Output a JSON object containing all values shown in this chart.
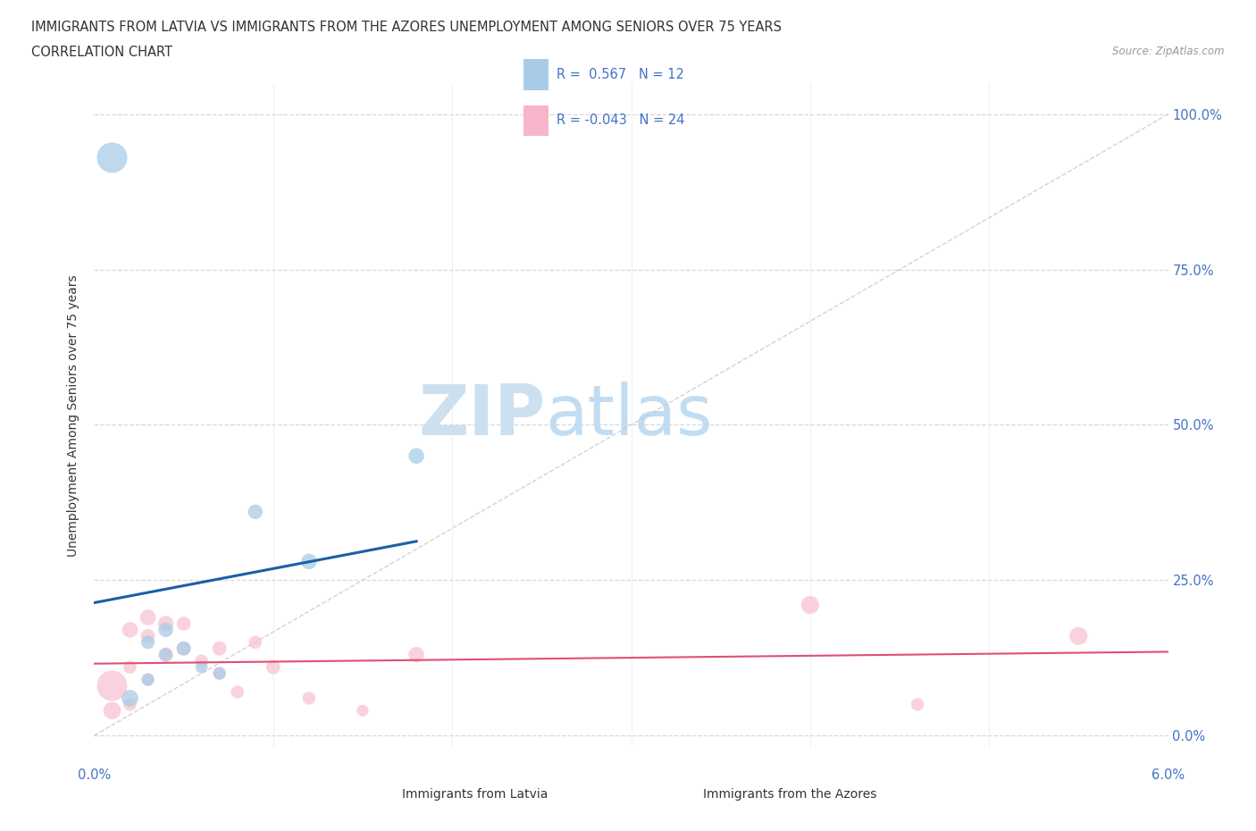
{
  "title_line1": "IMMIGRANTS FROM LATVIA VS IMMIGRANTS FROM THE AZORES UNEMPLOYMENT AMONG SENIORS OVER 75 YEARS",
  "title_line2": "CORRELATION CHART",
  "source": "Source: ZipAtlas.com",
  "ylabel": "Unemployment Among Seniors over 75 years",
  "ytick_labels": [
    "0.0%",
    "25.0%",
    "50.0%",
    "75.0%",
    "100.0%"
  ],
  "ytick_values": [
    0.0,
    0.25,
    0.5,
    0.75,
    1.0
  ],
  "xlim": [
    0.0,
    0.06
  ],
  "ylim": [
    -0.02,
    1.05
  ],
  "legend_label1": "Immigrants from Latvia",
  "legend_label2": "Immigrants from the Azores",
  "r_latvia": "0.567",
  "n_latvia": "12",
  "r_azores": "-0.043",
  "n_azores": "24",
  "color_latvia": "#a8cce8",
  "color_azores": "#f8b4c8",
  "trendline_latvia_color": "#1a5fa8",
  "trendline_azores_color": "#e05070",
  "diagonal_color": "#c8c8c8",
  "watermark_color": "#cce0f0",
  "latvia_x": [
    0.001,
    0.002,
    0.003,
    0.003,
    0.004,
    0.004,
    0.005,
    0.006,
    0.007,
    0.009,
    0.012,
    0.018
  ],
  "latvia_y": [
    0.93,
    0.06,
    0.15,
    0.09,
    0.17,
    0.13,
    0.14,
    0.11,
    0.1,
    0.36,
    0.28,
    0.45
  ],
  "latvia_sizes": [
    600,
    180,
    120,
    100,
    140,
    110,
    130,
    100,
    100,
    140,
    160,
    160
  ],
  "azores_x": [
    0.001,
    0.001,
    0.002,
    0.002,
    0.002,
    0.003,
    0.003,
    0.003,
    0.004,
    0.004,
    0.005,
    0.005,
    0.006,
    0.007,
    0.007,
    0.008,
    0.009,
    0.01,
    0.012,
    0.015,
    0.018,
    0.04,
    0.046,
    0.055
  ],
  "azores_y": [
    0.08,
    0.04,
    0.17,
    0.11,
    0.05,
    0.19,
    0.16,
    0.09,
    0.18,
    0.13,
    0.18,
    0.14,
    0.12,
    0.1,
    0.14,
    0.07,
    0.15,
    0.11,
    0.06,
    0.04,
    0.13,
    0.21,
    0.05,
    0.16
  ],
  "azores_sizes": [
    600,
    200,
    160,
    110,
    110,
    160,
    130,
    110,
    160,
    140,
    130,
    130,
    110,
    110,
    130,
    110,
    110,
    130,
    110,
    90,
    160,
    210,
    110,
    210
  ],
  "xtick_positions": [
    0.0,
    0.01,
    0.02,
    0.03,
    0.04,
    0.05,
    0.06
  ],
  "grid_color": "#d8d8d8",
  "axis_label_color": "#4472c4",
  "text_color": "#333333"
}
